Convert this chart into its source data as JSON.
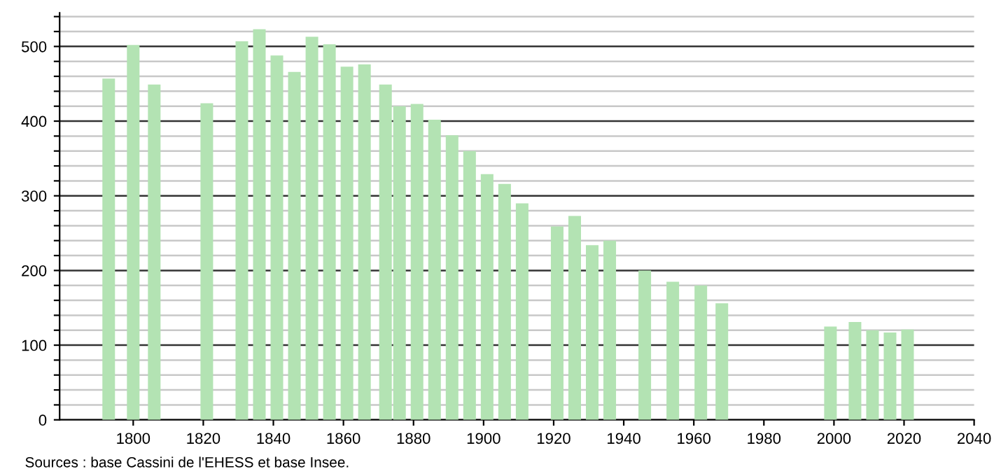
{
  "chart_data": {
    "type": "bar",
    "x": [
      1793,
      1800,
      1806,
      1821,
      1831,
      1836,
      1841,
      1846,
      1851,
      1856,
      1861,
      1866,
      1872,
      1876,
      1881,
      1886,
      1891,
      1896,
      1901,
      1906,
      1911,
      1921,
      1926,
      1931,
      1936,
      1946,
      1954,
      1962,
      1968,
      1999,
      2006,
      2011,
      2016,
      2021
    ],
    "values": [
      457,
      502,
      449,
      424,
      507,
      523,
      488,
      466,
      513,
      503,
      473,
      476,
      449,
      420,
      423,
      402,
      381,
      360,
      329,
      316,
      290,
      259,
      273,
      234,
      240,
      200,
      185,
      180,
      156,
      125,
      131,
      120,
      117,
      121
    ],
    "color": "#b3e3b3",
    "xlim": [
      1779,
      2040
    ],
    "xticks": [
      1800,
      1820,
      1840,
      1860,
      1880,
      1900,
      1920,
      1940,
      1960,
      1980,
      2000,
      2020,
      2040
    ],
    "ylim": [
      0,
      545
    ],
    "yticks": [
      0,
      {
        "value": 20,
        "label": null
      },
      {
        "value": 40,
        "label": null
      },
      {
        "value": 60,
        "label": null
      },
      {
        "value": 80,
        "label": null
      },
      100,
      {
        "value": 120,
        "label": null
      },
      {
        "value": 140,
        "label": null
      },
      {
        "value": 160,
        "label": null
      },
      {
        "value": 180,
        "label": null
      },
      200,
      {
        "value": 220,
        "label": null
      },
      {
        "value": 240,
        "label": null
      },
      {
        "value": 260,
        "label": null
      },
      {
        "value": 280,
        "label": null
      },
      300,
      {
        "value": 320,
        "label": null
      },
      {
        "value": 340,
        "label": null
      },
      {
        "value": 360,
        "label": null
      },
      {
        "value": 380,
        "label": null
      },
      400,
      {
        "value": 420,
        "label": null
      },
      {
        "value": 440,
        "label": null
      },
      {
        "value": 460,
        "label": null
      },
      {
        "value": 480,
        "label": null
      },
      500,
      {
        "value": 520,
        "label": null
      },
      {
        "value": 540,
        "label": null
      }
    ],
    "grid": "y",
    "annotations": [
      "Sources : base Cassini de l'EHESS et base Insee."
    ]
  }
}
